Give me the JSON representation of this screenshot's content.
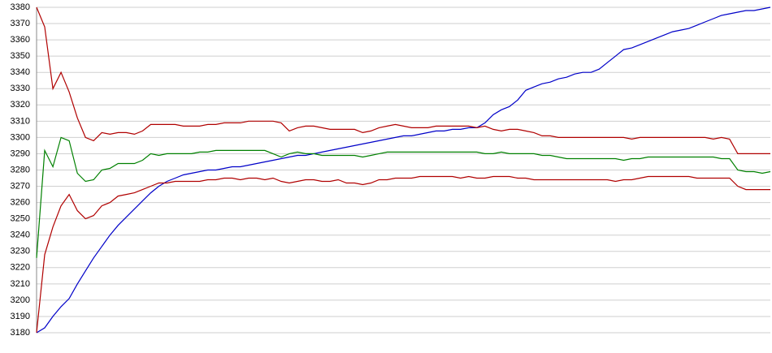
{
  "chart_data": {
    "type": "line",
    "ylim": [
      3180,
      3380
    ],
    "yticks": [
      3180,
      3190,
      3200,
      3210,
      3220,
      3230,
      3240,
      3250,
      3260,
      3270,
      3280,
      3290,
      3300,
      3310,
      3320,
      3330,
      3340,
      3350,
      3360,
      3370,
      3380
    ],
    "grid": true,
    "series": [
      {
        "color": "#0000c8",
        "values": [
          3180,
          3183,
          3190,
          3196,
          3201,
          3210,
          3218,
          3226,
          3233,
          3240,
          3246,
          3251,
          3256,
          3261,
          3266,
          3270,
          3273,
          3275,
          3277,
          3278,
          3279,
          3280,
          3280,
          3281,
          3282,
          3282,
          3283,
          3284,
          3285,
          3286,
          3287,
          3288,
          3289,
          3289,
          3290,
          3291,
          3292,
          3293,
          3294,
          3295,
          3296,
          3297,
          3298,
          3299,
          3300,
          3301,
          3301,
          3302,
          3303,
          3304,
          3304,
          3305,
          3305,
          3306,
          3306,
          3309,
          3314,
          3317,
          3319,
          3323,
          3329,
          3331,
          3333,
          3334,
          3336,
          3337,
          3339,
          3340,
          3340,
          3342,
          3346,
          3350,
          3354,
          3355,
          3357,
          3359,
          3361,
          3363,
          3365,
          3366,
          3367,
          3369,
          3371,
          3373,
          3375,
          3376,
          3377,
          3378,
          3378,
          3379,
          3380
        ]
      },
      {
        "color": "#008000",
        "values": [
          3226,
          3292,
          3282,
          3300,
          3298,
          3278,
          3273,
          3274,
          3280,
          3281,
          3284,
          3284,
          3284,
          3286,
          3290,
          3289,
          3290,
          3290,
          3290,
          3290,
          3291,
          3291,
          3292,
          3292,
          3292,
          3292,
          3292,
          3292,
          3292,
          3290,
          3288,
          3290,
          3291,
          3290,
          3290,
          3289,
          3289,
          3289,
          3289,
          3289,
          3288,
          3289,
          3290,
          3291,
          3291,
          3291,
          3291,
          3291,
          3291,
          3291,
          3291,
          3291,
          3291,
          3291,
          3291,
          3290,
          3290,
          3291,
          3290,
          3290,
          3290,
          3290,
          3289,
          3289,
          3288,
          3287,
          3287,
          3287,
          3287,
          3287,
          3287,
          3287,
          3286,
          3287,
          3287,
          3288,
          3288,
          3288,
          3288,
          3288,
          3288,
          3288,
          3288,
          3288,
          3287,
          3287,
          3280,
          3279,
          3279,
          3278,
          3279
        ]
      },
      {
        "color": "#b00000",
        "values": [
          3380,
          3368,
          3330,
          3340,
          3328,
          3312,
          3300,
          3298,
          3303,
          3302,
          3303,
          3303,
          3302,
          3304,
          3308,
          3308,
          3308,
          3308,
          3307,
          3307,
          3307,
          3308,
          3308,
          3309,
          3309,
          3309,
          3310,
          3310,
          3310,
          3310,
          3309,
          3304,
          3306,
          3307,
          3307,
          3306,
          3305,
          3305,
          3305,
          3305,
          3303,
          3304,
          3306,
          3307,
          3308,
          3307,
          3306,
          3306,
          3306,
          3307,
          3307,
          3307,
          3307,
          3307,
          3306,
          3307,
          3305,
          3304,
          3305,
          3305,
          3304,
          3303,
          3301,
          3301,
          3300,
          3300,
          3300,
          3300,
          3300,
          3300,
          3300,
          3300,
          3300,
          3299,
          3300,
          3300,
          3300,
          3300,
          3300,
          3300,
          3300,
          3300,
          3300,
          3299,
          3300,
          3299,
          3290,
          3290,
          3290,
          3290,
          3290
        ]
      },
      {
        "color": "#b00000",
        "values": [
          3180,
          3228,
          3245,
          3258,
          3265,
          3255,
          3250,
          3252,
          3258,
          3260,
          3264,
          3265,
          3266,
          3268,
          3270,
          3272,
          3272,
          3273,
          3273,
          3273,
          3273,
          3274,
          3274,
          3275,
          3275,
          3274,
          3275,
          3275,
          3274,
          3275,
          3273,
          3272,
          3273,
          3274,
          3274,
          3273,
          3273,
          3274,
          3272,
          3272,
          3271,
          3272,
          3274,
          3274,
          3275,
          3275,
          3275,
          3276,
          3276,
          3276,
          3276,
          3276,
          3275,
          3276,
          3275,
          3275,
          3276,
          3276,
          3276,
          3275,
          3275,
          3274,
          3274,
          3274,
          3274,
          3274,
          3274,
          3274,
          3274,
          3274,
          3274,
          3273,
          3274,
          3274,
          3275,
          3276,
          3276,
          3276,
          3276,
          3276,
          3276,
          3275,
          3275,
          3275,
          3275,
          3275,
          3270,
          3268,
          3268,
          3268,
          3268
        ]
      }
    ]
  }
}
